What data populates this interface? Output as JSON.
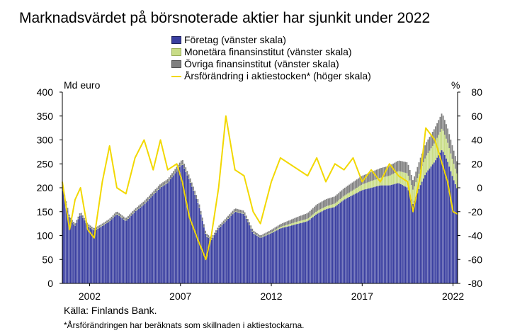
{
  "title": "Marknadsvärdet på börsnoterade aktier har sjunkit under 2022",
  "source": "Källa: Finlands Bank.",
  "footnote": "*Årsförändringen har beräknats som skillnaden i aktiestockarna.",
  "chart_data": {
    "type": "bar",
    "stacked": true,
    "title": "Marknadsvärdet på börsnoterade aktier har sjunkit under 2022",
    "y_left_unit": "Md euro",
    "y_right_unit": "%",
    "ylim_left": [
      0,
      400
    ],
    "ylim_right": [
      -80,
      80
    ],
    "yticks_left": [
      0,
      50,
      100,
      150,
      200,
      250,
      300,
      350,
      400
    ],
    "yticks_right": [
      -80,
      -60,
      -40,
      -20,
      0,
      20,
      40,
      60,
      80
    ],
    "xticks": [
      "2002",
      "2007",
      "2012",
      "2017",
      "2022"
    ],
    "x_range": [
      2001.0,
      2022.75
    ],
    "grid": false,
    "legend_position": "top",
    "colors": {
      "Företag (vänster skala)": "#3a3fa0",
      "Monetära finansinstitut (vänster skala)": "#c8dc86",
      "Övriga finansinstitut (vänster skala)": "#808080",
      "Årsförändring i aktiestocken* (höger skala)": "#f2d800"
    },
    "x_keypoints": [
      2001.0,
      2001.4,
      2001.7,
      2002.0,
      2002.4,
      2002.75,
      2003.2,
      2003.6,
      2004.0,
      2004.5,
      2005.0,
      2005.5,
      2006.0,
      2006.4,
      2006.8,
      2007.3,
      2007.6,
      2008.0,
      2008.5,
      2008.9,
      2009.2,
      2009.6,
      2010.0,
      2010.5,
      2011.0,
      2011.5,
      2011.9,
      2012.5,
      2013.0,
      2013.5,
      2014.0,
      2014.5,
      2015.0,
      2015.5,
      2016.0,
      2016.5,
      2017.0,
      2017.5,
      2018.0,
      2018.5,
      2019.0,
      2019.5,
      2020.0,
      2020.3,
      2020.7,
      2021.0,
      2021.5,
      2021.9,
      2022.2,
      2022.5,
      2022.75
    ],
    "series": [
      {
        "name": "Företag (vänster skala)",
        "axis": "left",
        "values": [
          200,
          135,
          120,
          145,
          120,
          110,
          120,
          130,
          145,
          130,
          150,
          165,
          185,
          200,
          210,
          235,
          250,
          215,
          165,
          100,
          90,
          115,
          130,
          150,
          145,
          105,
          95,
          105,
          115,
          120,
          125,
          130,
          145,
          155,
          160,
          175,
          185,
          195,
          200,
          205,
          205,
          210,
          200,
          165,
          205,
          230,
          255,
          280,
          255,
          220,
          195
        ]
      },
      {
        "name": "Monetära finansinstitut (vänster skala)",
        "axis": "left",
        "values": [
          1,
          1,
          1,
          1,
          1,
          1,
          1,
          1,
          1,
          1,
          1,
          1,
          1,
          1,
          1,
          1,
          1,
          1,
          1,
          1,
          1,
          1,
          1,
          1,
          1,
          1,
          1,
          2,
          3,
          4,
          5,
          5,
          6,
          6,
          7,
          8,
          10,
          12,
          14,
          16,
          20,
          25,
          30,
          30,
          32,
          35,
          40,
          45,
          40,
          35,
          30
        ]
      },
      {
        "name": "Övriga finansinstitut (vänster skala)",
        "axis": "left",
        "values": [
          5,
          4,
          4,
          4,
          4,
          4,
          4,
          4,
          5,
          5,
          5,
          6,
          6,
          7,
          7,
          8,
          9,
          8,
          6,
          5,
          4,
          4,
          5,
          6,
          6,
          5,
          4,
          5,
          6,
          8,
          10,
          12,
          14,
          15,
          15,
          16,
          17,
          18,
          19,
          20,
          21,
          22,
          23,
          20,
          25,
          28,
          30,
          32,
          30,
          28,
          25
        ]
      },
      {
        "name": "Årsförändring i aktiestocken* (höger skala)",
        "axis": "right",
        "values": [
          5,
          -35,
          -10,
          0,
          -35,
          -42,
          5,
          35,
          0,
          -5,
          25,
          40,
          15,
          40,
          15,
          20,
          5,
          -25,
          -45,
          -60,
          -40,
          0,
          60,
          15,
          10,
          -20,
          -30,
          5,
          25,
          20,
          15,
          10,
          25,
          5,
          20,
          15,
          25,
          5,
          15,
          5,
          20,
          10,
          5,
          -20,
          10,
          50,
          40,
          20,
          5,
          -20,
          -22
        ]
      }
    ]
  }
}
